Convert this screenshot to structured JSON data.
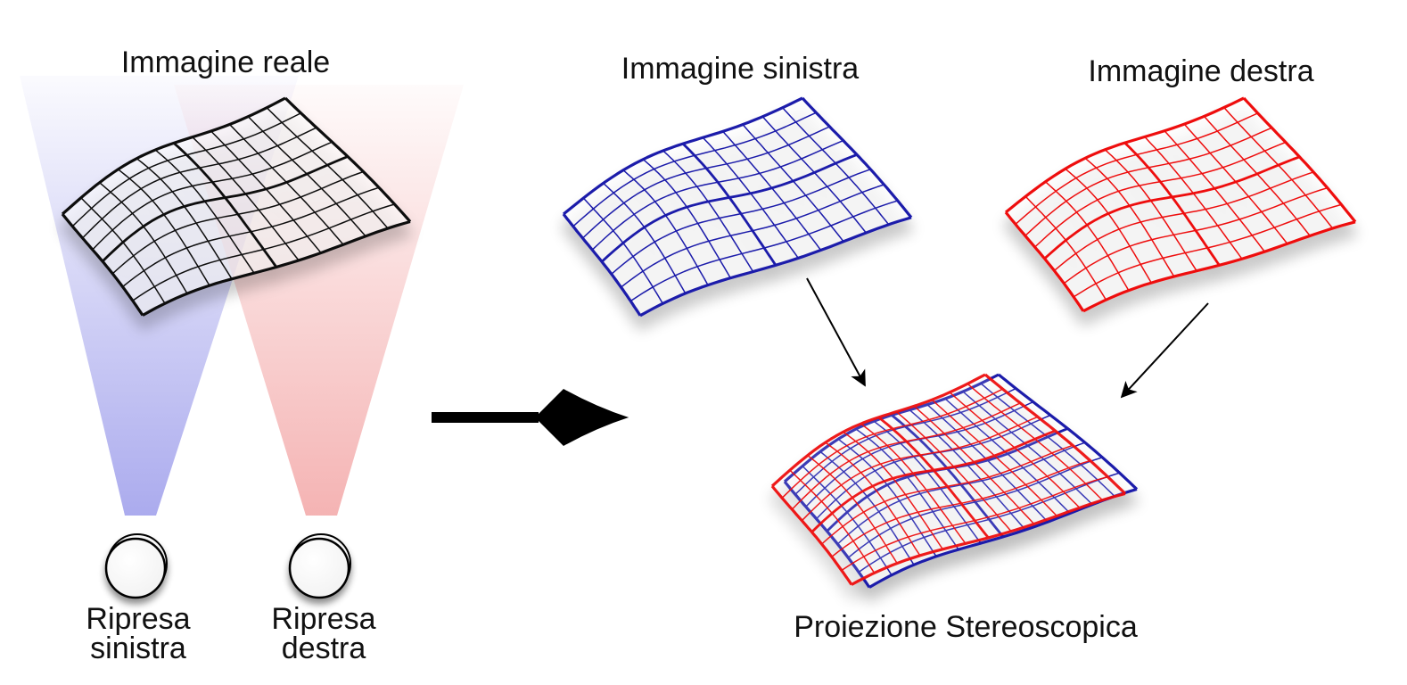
{
  "labels": {
    "real_image": "Immagine reale",
    "left_image": "Immagine sinistra",
    "right_image": "Immagine destra",
    "camera_left_line1": "Ripresa",
    "camera_left_line2": "sinistra",
    "camera_right_line1": "Ripresa",
    "camera_right_line2": "destra",
    "projection": "Proiezione Stereoscopica"
  },
  "colors": {
    "real_grid": "#111111",
    "left_grid": "#1a1aaa",
    "right_grid": "#ee1111",
    "left_beam": "#8f8fe8",
    "right_beam": "#f19a9a",
    "arrow": "#000000"
  },
  "grid": {
    "rows": 8,
    "cols": 12
  }
}
